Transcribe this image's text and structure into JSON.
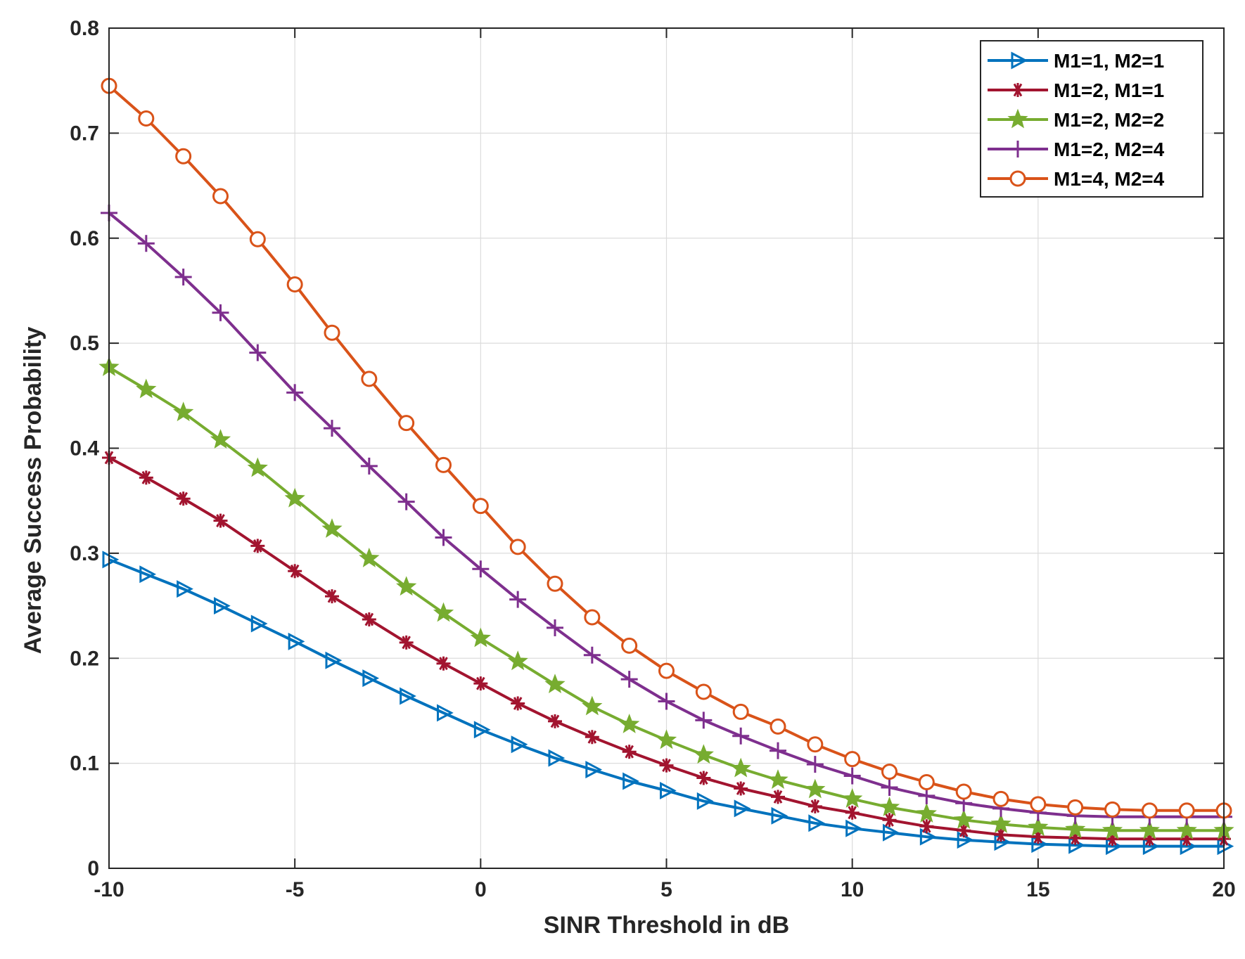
{
  "chart_data": {
    "type": "line",
    "title": "",
    "xlabel": "SINR Threshold in dB",
    "ylabel": "Average Success Probability",
    "xlim": [
      -10,
      20
    ],
    "ylim": [
      0,
      0.8
    ],
    "grid": true,
    "legend_position": "top-right",
    "xticks": [
      -10,
      -5,
      0,
      5,
      10,
      15,
      20
    ],
    "xtick_labels": [
      "-10",
      "-5",
      "0",
      "5",
      "10",
      "15",
      "20"
    ],
    "yticks": [
      0,
      0.1,
      0.2,
      0.3,
      0.4,
      0.5,
      0.6,
      0.7,
      0.8
    ],
    "ytick_labels": [
      "0",
      "0.1",
      "0.2",
      "0.3",
      "0.4",
      "0.5",
      "0.6",
      "0.7",
      "0.8"
    ],
    "x": [
      -10,
      -9,
      -8,
      -7,
      -6,
      -5,
      -4,
      -3,
      -2,
      -1,
      0,
      1,
      2,
      3,
      4,
      5,
      6,
      7,
      8,
      9,
      10,
      11,
      12,
      13,
      14,
      15,
      16,
      17,
      18,
      19,
      20
    ],
    "series": [
      {
        "name": "M1=1, M2=1",
        "color": "#0072BD",
        "marker": "triangle-right",
        "values": [
          0.294,
          0.28,
          0.266,
          0.25,
          0.233,
          0.216,
          0.198,
          0.181,
          0.164,
          0.148,
          0.132,
          0.118,
          0.105,
          0.094,
          0.083,
          0.074,
          0.064,
          0.057,
          0.05,
          0.043,
          0.038,
          0.034,
          0.03,
          0.027,
          0.025,
          0.023,
          0.022,
          0.021,
          0.021,
          0.021,
          0.021
        ]
      },
      {
        "name": "M1=2, M1=1",
        "color": "#A2142F",
        "marker": "asterisk",
        "values": [
          0.391,
          0.372,
          0.352,
          0.331,
          0.307,
          0.283,
          0.259,
          0.237,
          0.215,
          0.195,
          0.176,
          0.157,
          0.14,
          0.125,
          0.111,
          0.098,
          0.086,
          0.076,
          0.068,
          0.059,
          0.053,
          0.046,
          0.04,
          0.036,
          0.032,
          0.03,
          0.029,
          0.028,
          0.028,
          0.028,
          0.028
        ]
      },
      {
        "name": "M1=2, M2=2",
        "color": "#77AC30",
        "marker": "star",
        "values": [
          0.477,
          0.456,
          0.434,
          0.408,
          0.381,
          0.352,
          0.323,
          0.295,
          0.268,
          0.243,
          0.219,
          0.197,
          0.175,
          0.154,
          0.137,
          0.122,
          0.108,
          0.095,
          0.084,
          0.075,
          0.066,
          0.058,
          0.052,
          0.046,
          0.042,
          0.039,
          0.037,
          0.036,
          0.036,
          0.036,
          0.036
        ]
      },
      {
        "name": "M1=2, M2=4",
        "color": "#7E2F8E",
        "marker": "plus",
        "values": [
          0.624,
          0.595,
          0.563,
          0.529,
          0.491,
          0.453,
          0.419,
          0.383,
          0.349,
          0.315,
          0.285,
          0.256,
          0.229,
          0.203,
          0.18,
          0.159,
          0.141,
          0.126,
          0.112,
          0.099,
          0.088,
          0.077,
          0.069,
          0.062,
          0.057,
          0.053,
          0.05,
          0.049,
          0.049,
          0.049,
          0.049
        ]
      },
      {
        "name": "M1=4, M2=4",
        "color": "#D95319",
        "marker": "circle",
        "values": [
          0.745,
          0.714,
          0.678,
          0.64,
          0.599,
          0.556,
          0.51,
          0.466,
          0.424,
          0.384,
          0.345,
          0.306,
          0.271,
          0.239,
          0.212,
          0.188,
          0.168,
          0.149,
          0.135,
          0.118,
          0.104,
          0.092,
          0.082,
          0.073,
          0.066,
          0.061,
          0.058,
          0.056,
          0.055,
          0.055,
          0.055
        ]
      }
    ]
  }
}
